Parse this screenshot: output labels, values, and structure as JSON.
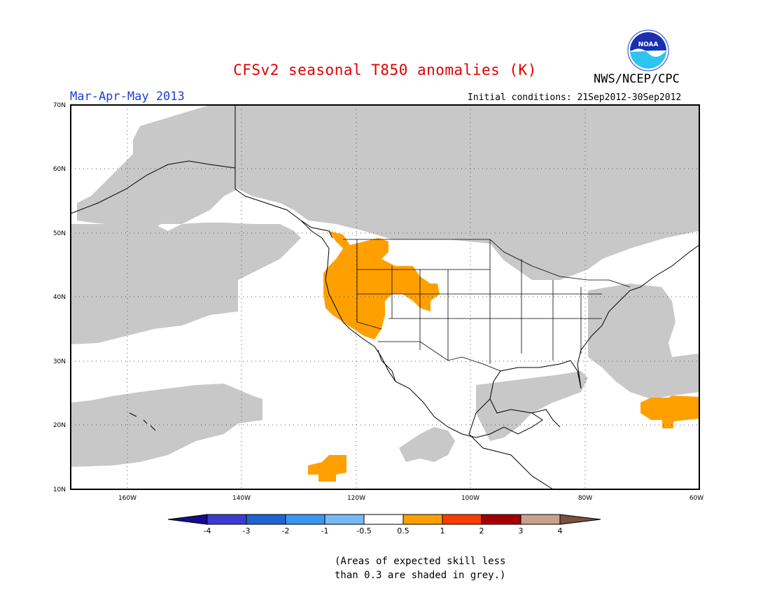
{
  "title": "CFSv2 seasonal T850 anomalies (K)",
  "agency": "NWS/NCEP/CPC",
  "logo_text": "NOAA",
  "season_label": "Mar-Apr-May 2013",
  "initial_conditions": "Initial conditions: 21Sep2012-30Sep2012",
  "lat_labels": [
    "70N",
    "60N",
    "50N",
    "40N",
    "30N",
    "20N",
    "10N"
  ],
  "lon_labels": [
    "160W",
    "140W",
    "120W",
    "100W",
    "80W",
    "60W"
  ],
  "colorbar": {
    "ticks": [
      "-4",
      "-3",
      "-2",
      "-1",
      "-0.5",
      "0.5",
      "1",
      "2",
      "3",
      "4"
    ],
    "colors": [
      "#1a0a8c",
      "#3c3cd0",
      "#1e64d2",
      "#3c96f0",
      "#78b9f5",
      "#ffffff",
      "#ffa000",
      "#ff3c00",
      "#a50000",
      "#c8a08c",
      "#7a5040"
    ]
  },
  "note_line1": "(Areas of expected skill less",
  "note_line2": "than 0.3 are shaded in grey.)",
  "colors": {
    "grey_shade": "#c8c8c8",
    "warm_anomaly": "#ffa000",
    "title_red": "#e00000",
    "season_blue": "#1a3fd6"
  }
}
